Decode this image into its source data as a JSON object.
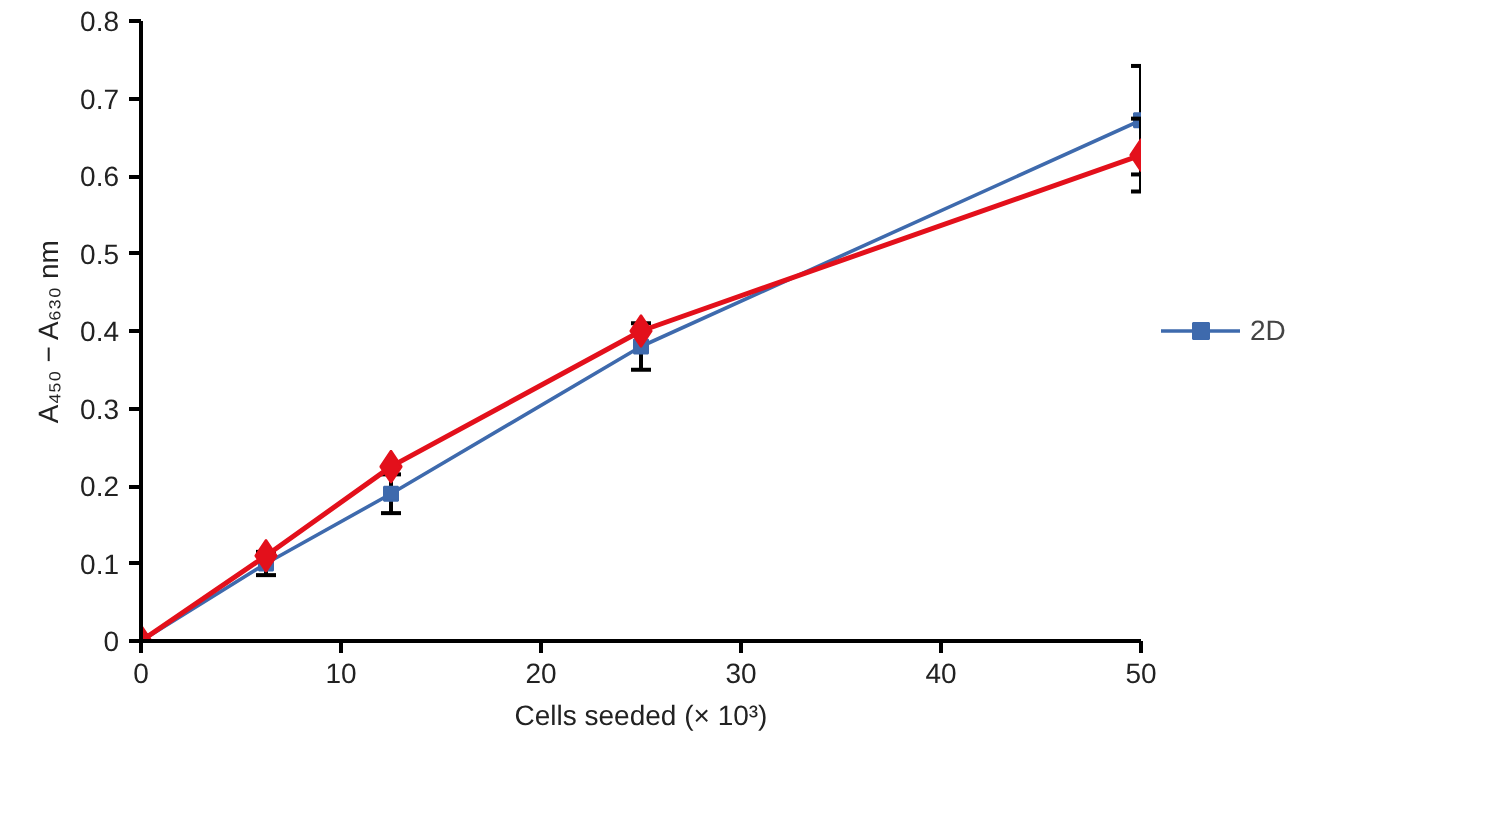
{
  "chart_data": {
    "type": "line",
    "xlabel": "Cells seeded (× 10³)",
    "ylabel": "A₄₅₀ − A₆₃₀ nm",
    "x": [
      0,
      6.25,
      12.5,
      25,
      50
    ],
    "series": [
      {
        "color": "#e3101b",
        "marker": "diamond",
        "values": [
          0,
          0.11,
          0.225,
          0.4,
          0.627
        ],
        "errors": [
          null,
          null,
          null,
          null,
          0.047
        ]
      },
      {
        "name": "2D",
        "color": "#3e6aad",
        "marker": "square",
        "values": [
          0,
          0.1,
          0.19,
          0.38,
          0.672
        ],
        "errors": [
          null,
          0.015,
          0.025,
          0.03,
          0.07
        ]
      }
    ],
    "xlim": [
      0,
      50
    ],
    "xticks": [
      0,
      10,
      20,
      30,
      40,
      50
    ],
    "ylim": [
      0,
      0.8
    ],
    "yticks": [
      0,
      0.1,
      0.2,
      0.3,
      0.4,
      0.5,
      0.6,
      0.7,
      0.8
    ],
    "grid": false,
    "legend": "right"
  }
}
